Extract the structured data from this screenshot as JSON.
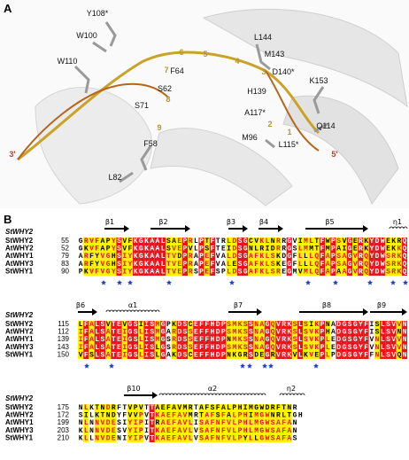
{
  "panel_a": {
    "label": "A",
    "residues": [
      "Y108*",
      "W100",
      "L144",
      "M143",
      "D140*",
      "W110",
      "F64",
      "S62",
      "H139",
      "K153",
      "S71",
      "A117*",
      "Q114",
      "M96",
      "L115*",
      "F58",
      "L82"
    ],
    "nucleotides": [
      "6",
      "5",
      "4",
      "3",
      "7",
      "8",
      "9",
      "3'",
      "2",
      "1",
      "5'"
    ]
  },
  "panel_b": {
    "label": "B",
    "blocks": [
      {
        "reference": "StWHY2",
        "ss": [
          "β1",
          "β2",
          "β3",
          "β4",
          "β5",
          "η1"
        ],
        "rows": [
          {
            "name": "StWHY2",
            "start": 55,
            "sequence": "GRVFAPYSVFKGKAALSAEPRLPTFTRLDSGCVKLNRRGVIMLTFWPSVGERKYDWEKRQ"
          },
          {
            "name": "AtWHY2",
            "start": 52,
            "sequence": "GKVFAPYSVFKGKAALSVEPVLPSFTEIDSGNLRIDRRGSLMMTFMPAIGERKYDWEKKQ"
          },
          {
            "name": "AtWHY1",
            "start": 79,
            "sequence": "ARFYVGHSIYKGKAALTVDPRAPEFVALDSGAFKLSKDGFLLLQFAPSAGVRQYDWSRKQ"
          },
          {
            "name": "AtWHY3",
            "start": 83,
            "sequence": "ARFYVGHSIYKGKAALTVEPRAPEFVALESGAFKLSKEGFLLLQFAPSAGVRQYDWSRKQ"
          },
          {
            "name": "StWHY1",
            "start": 90,
            "sequence": "PKVFVGYSIYKGKAALTVEPRSPEFSPLDSGAFKLSREGMVMLQFAPAAGVRQYDWSRKQ"
          }
        ]
      },
      {
        "reference": "StWHY2",
        "ss": [
          "β6",
          "α1",
          "β7",
          "β8",
          "β9"
        ],
        "rows": [
          {
            "name": "StWHY2",
            "start": 115,
            "sequence": "LFALSVTEVGSIISMGPKDSCEFFHDPSMKSSNAGQVRKSLSIKPNADGSGYFISLSVVN"
          },
          {
            "name": "AtWHY2",
            "start": 112,
            "sequence": "IFALSATEIGSLISMGARDSSEFFHDPSMKSSNAGQVRKSLSVKPHADGSGYFISLSVNN"
          },
          {
            "name": "AtWHY1",
            "start": 139,
            "sequence": "IFALSATEIGSLISMGSRDSSEFFHDPNMKSSNAGQVRKSLSVKPLEDGSGYFVNLSVVN"
          },
          {
            "name": "AtWHY3",
            "start": 143,
            "sequence": "IFALSATEIGSLISLGSRDSSEFFHDPSMKSSNAGQVRKSLSVKPLEDGSGYFVNLSVVN"
          },
          {
            "name": "StWHY1",
            "start": 150,
            "sequence": "VFSLSATEIGSLISLGAKDSCEFFHDPNKGRSDEGRVRKVLKVEPLPDGSGYFFNLSVQN"
          }
        ]
      },
      {
        "reference": "StWHY2",
        "ss": [
          "β10",
          "α2",
          "η2"
        ],
        "rows": [
          {
            "name": "StWHY2",
            "start": 175,
            "sequence": "NLKTNDRFTVPVTTAEFAVMRTAFSFALPHIMGWDRFTNR"
          },
          {
            "name": "AtWHY2",
            "start": 172,
            "sequence": "SILKTNDYFVVPVTKAEFAVMRTAFSFALPHIMGWNRLTGH"
          },
          {
            "name": "AtWHY1",
            "start": 199,
            "sequence": "NLNNVDESIYIPITRAEFAVLISAFNFVLPHLMGWSAFAN"
          },
          {
            "name": "AtWHY3",
            "start": 203,
            "sequence": "KLNNVDESVYIPITKAEFAVLVSAFNFVLPHLMGWSAFAN"
          },
          {
            "name": "StWHY1",
            "start": 210,
            "sequence": "KLLNVDENIYIPVTKAEFAVLVSAFNFVLPYLLGWSAFAS"
          }
        ]
      }
    ]
  }
}
